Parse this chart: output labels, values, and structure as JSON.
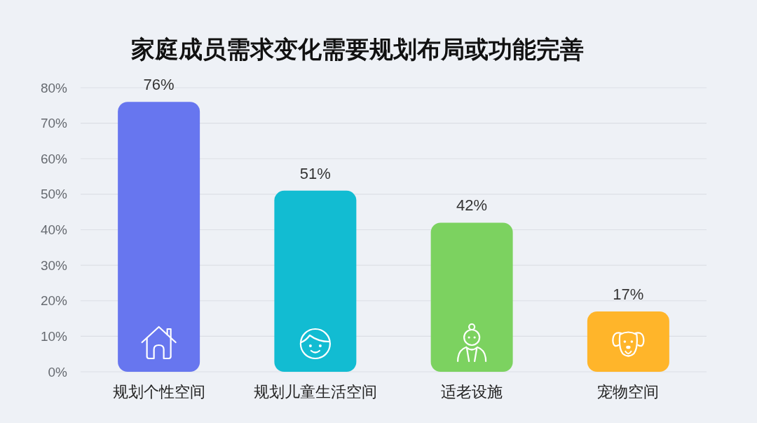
{
  "chart_data": {
    "type": "bar",
    "title": "家庭成员需求变化需要规划布局或功能完善",
    "categories": [
      "规划个性空间",
      "规划儿童生活空间",
      "适老设施",
      "宠物空间"
    ],
    "values": [
      76,
      51,
      42,
      17
    ],
    "colors": [
      "#6776ef",
      "#12bcd2",
      "#7cd260",
      "#ffb52a"
    ],
    "value_labels": [
      "76%",
      "51%",
      "42%",
      "17%"
    ],
    "ylim": [
      0,
      80
    ],
    "yticks": [
      {
        "value": 0,
        "label": "0%"
      },
      {
        "value": 10,
        "label": "10%"
      },
      {
        "value": 20,
        "label": "20%"
      },
      {
        "value": 30,
        "label": "30%"
      },
      {
        "value": 40,
        "label": "40%"
      },
      {
        "value": 50,
        "label": "50%"
      },
      {
        "value": 60,
        "label": "60%"
      },
      {
        "value": 70,
        "label": "70%"
      },
      {
        "value": 80,
        "label": "80%"
      }
    ],
    "grid": "y"
  }
}
